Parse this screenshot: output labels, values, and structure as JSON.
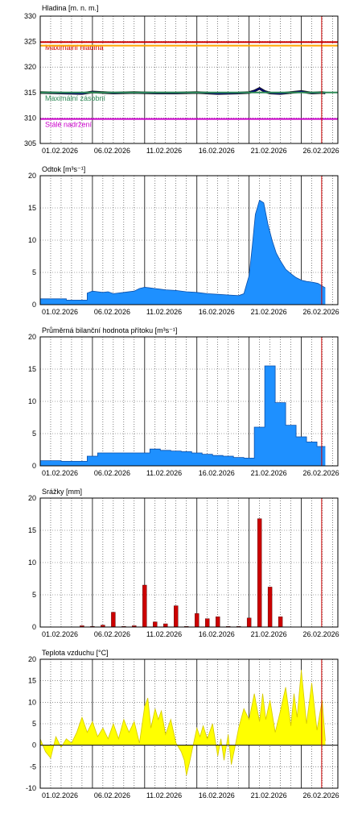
{
  "x_tick_labels": [
    "01.02.2026",
    "06.02.2026",
    "11.02.2026",
    "16.02.2026",
    "21.02.2026",
    "26.02.2026"
  ],
  "chart_data": [
    {
      "type": "line",
      "title": "Hladina [m. n. m.]",
      "ylim": [
        305,
        330
      ],
      "yticks": [
        305,
        310,
        315,
        320,
        325,
        330
      ],
      "x": [
        1,
        28.3
      ],
      "grid": true,
      "reference_lines": [
        {
          "label": "Maximální hladina",
          "value": 324.9,
          "color": "#cc0000"
        },
        {
          "label": "",
          "value": 324.2,
          "color": "#ffa500"
        },
        {
          "label": "Maximální zásobní",
          "value": 315.0,
          "color": "#2e8b57"
        },
        {
          "label": "Stálé nadržení",
          "value": 309.8,
          "color": "#cc00cc"
        }
      ],
      "series": [
        {
          "color": "#000080",
          "x": [
            1,
            3,
            5,
            6,
            8,
            10,
            12,
            14,
            16,
            18,
            20,
            21,
            21.5,
            22,
            22.5,
            23,
            24,
            25,
            26,
            27,
            28,
            28.3
          ],
          "values": [
            315.0,
            314.9,
            314.8,
            315.1,
            314.9,
            315.0,
            314.9,
            314.9,
            315.0,
            314.8,
            314.9,
            315.0,
            315.3,
            315.8,
            315.2,
            314.9,
            314.8,
            315.0,
            315.2,
            314.9,
            315.0,
            314.9
          ]
        }
      ]
    },
    {
      "type": "area",
      "title": "Odtok [m³s⁻¹]",
      "ylim": [
        0,
        20
      ],
      "yticks": [
        0,
        5,
        10,
        15,
        20
      ],
      "grid": true,
      "series": [
        {
          "color": "#1e90ff",
          "x": [
            1,
            3.5,
            3.5,
            5.5,
            5.5,
            6,
            6.5,
            7,
            7.5,
            8,
            9,
            10,
            10.5,
            11,
            11.5,
            12,
            12.5,
            13,
            14,
            15,
            16,
            17,
            18,
            19,
            20,
            20.5,
            21,
            21.3,
            21.6,
            22,
            22.4,
            22.8,
            23.2,
            23.6,
            24,
            24.5,
            25,
            25.5,
            26,
            26.5,
            27,
            27.3,
            27.6,
            28,
            28.3
          ],
          "values": [
            0.9,
            0.9,
            0.7,
            0.7,
            1.8,
            2.1,
            2.0,
            1.9,
            2.0,
            1.7,
            1.9,
            2.1,
            2.5,
            2.7,
            2.6,
            2.5,
            2.4,
            2.3,
            2.2,
            2.0,
            1.9,
            1.7,
            1.6,
            1.5,
            1.4,
            1.7,
            4.5,
            9.0,
            14.0,
            16.2,
            15.8,
            12.5,
            10.0,
            8.0,
            6.8,
            5.5,
            4.8,
            4.2,
            3.8,
            3.6,
            3.5,
            3.4,
            3.3,
            2.9,
            2.6
          ]
        }
      ]
    },
    {
      "type": "area",
      "title": "Průměrná bilanční hodnota přítoku [m³s⁻¹]",
      "ylim": [
        0,
        20
      ],
      "yticks": [
        0,
        5,
        10,
        15,
        20
      ],
      "grid": true,
      "series": [
        {
          "color": "#1e90ff",
          "x": [
            1,
            3,
            3,
            5.5,
            5.5,
            6.5,
            6.5,
            11.5,
            11.5,
            12.5,
            12.5,
            13.5,
            13.5,
            14.5,
            14.5,
            15.5,
            15.5,
            16.5,
            16.5,
            17.5,
            17.5,
            18.5,
            18.5,
            19.5,
            19.5,
            20.5,
            20.5,
            21.5,
            21.5,
            22.5,
            22.5,
            23.5,
            23.5,
            24.5,
            24.5,
            25.5,
            25.5,
            26.5,
            26.5,
            27.5,
            27.5,
            28.3
          ],
          "values": [
            0.8,
            0.8,
            0.7,
            0.7,
            1.5,
            1.5,
            2.0,
            2.0,
            2.6,
            2.6,
            2.4,
            2.4,
            2.3,
            2.3,
            2.2,
            2.2,
            2.0,
            2.0,
            1.8,
            1.8,
            1.6,
            1.6,
            1.5,
            1.5,
            1.3,
            1.3,
            1.2,
            1.2,
            6.0,
            6.0,
            15.5,
            15.5,
            9.8,
            9.8,
            6.3,
            6.3,
            4.5,
            4.5,
            3.7,
            3.7,
            3.0,
            3.0
          ]
        }
      ]
    },
    {
      "type": "bar",
      "title": "Srážky [mm]",
      "ylim": [
        0,
        20
      ],
      "yticks": [
        0,
        5,
        10,
        15,
        20
      ],
      "grid": true,
      "series": [
        {
          "color": "#cc0000",
          "x": [
            5,
            6,
            7,
            8,
            9,
            10,
            11,
            12,
            13,
            14,
            15,
            16,
            17,
            18,
            19,
            20,
            21,
            22,
            23,
            24
          ],
          "values": [
            0.2,
            0.1,
            0.3,
            2.3,
            0.1,
            0.2,
            6.5,
            0.8,
            0.5,
            3.3,
            0.1,
            2.1,
            1.3,
            1.6,
            0.1,
            0.1,
            1.4,
            16.8,
            6.2,
            1.6
          ]
        }
      ]
    },
    {
      "type": "area",
      "title": "Teplota vzduchu [°C]",
      "ylim": [
        -10,
        20
      ],
      "yticks": [
        -10,
        -5,
        0,
        5,
        10,
        15,
        20
      ],
      "grid": true,
      "series": [
        {
          "color": "#ffff00",
          "x": [
            1,
            1.5,
            2,
            2.5,
            3,
            3.5,
            4,
            4.5,
            5,
            5.5,
            6,
            6.5,
            7,
            7.5,
            8,
            8.5,
            9,
            9.5,
            10,
            10.5,
            11,
            11.3,
            11.6,
            12,
            12.3,
            12.6,
            13,
            13.5,
            14,
            14.5,
            14.8,
            15,
            15.3,
            15.6,
            16,
            16.3,
            16.6,
            17,
            17.5,
            18,
            18.3,
            18.6,
            19,
            19.3,
            19.6,
            20,
            20.5,
            21,
            21.5,
            22,
            22.3,
            22.6,
            23,
            23.5,
            24,
            24.5,
            25,
            25.3,
            25.6,
            26,
            26.5,
            27,
            27.5,
            28,
            28.3
          ],
          "values": [
            1.5,
            -1.5,
            -3.0,
            2.0,
            -0.5,
            1.5,
            0.5,
            3.0,
            6.5,
            3.0,
            5.5,
            2.0,
            4.0,
            1.5,
            5.0,
            1.5,
            6.0,
            3.0,
            5.5,
            0.5,
            9.0,
            11.0,
            4.0,
            8.5,
            6.0,
            8.0,
            2.5,
            6.0,
            0.5,
            -1.5,
            -3.5,
            -7.0,
            -4.0,
            -0.5,
            4.0,
            2.0,
            4.5,
            1.5,
            5.0,
            -2.5,
            1.5,
            -3.5,
            2.5,
            -4.5,
            -1.0,
            4.0,
            8.5,
            6.0,
            12.0,
            5.5,
            12.0,
            6.0,
            10.5,
            3.0,
            8.0,
            13.5,
            4.5,
            12.0,
            6.5,
            17.5,
            5.0,
            14.5,
            3.5,
            10.5,
            1.0
          ]
        }
      ]
    }
  ]
}
